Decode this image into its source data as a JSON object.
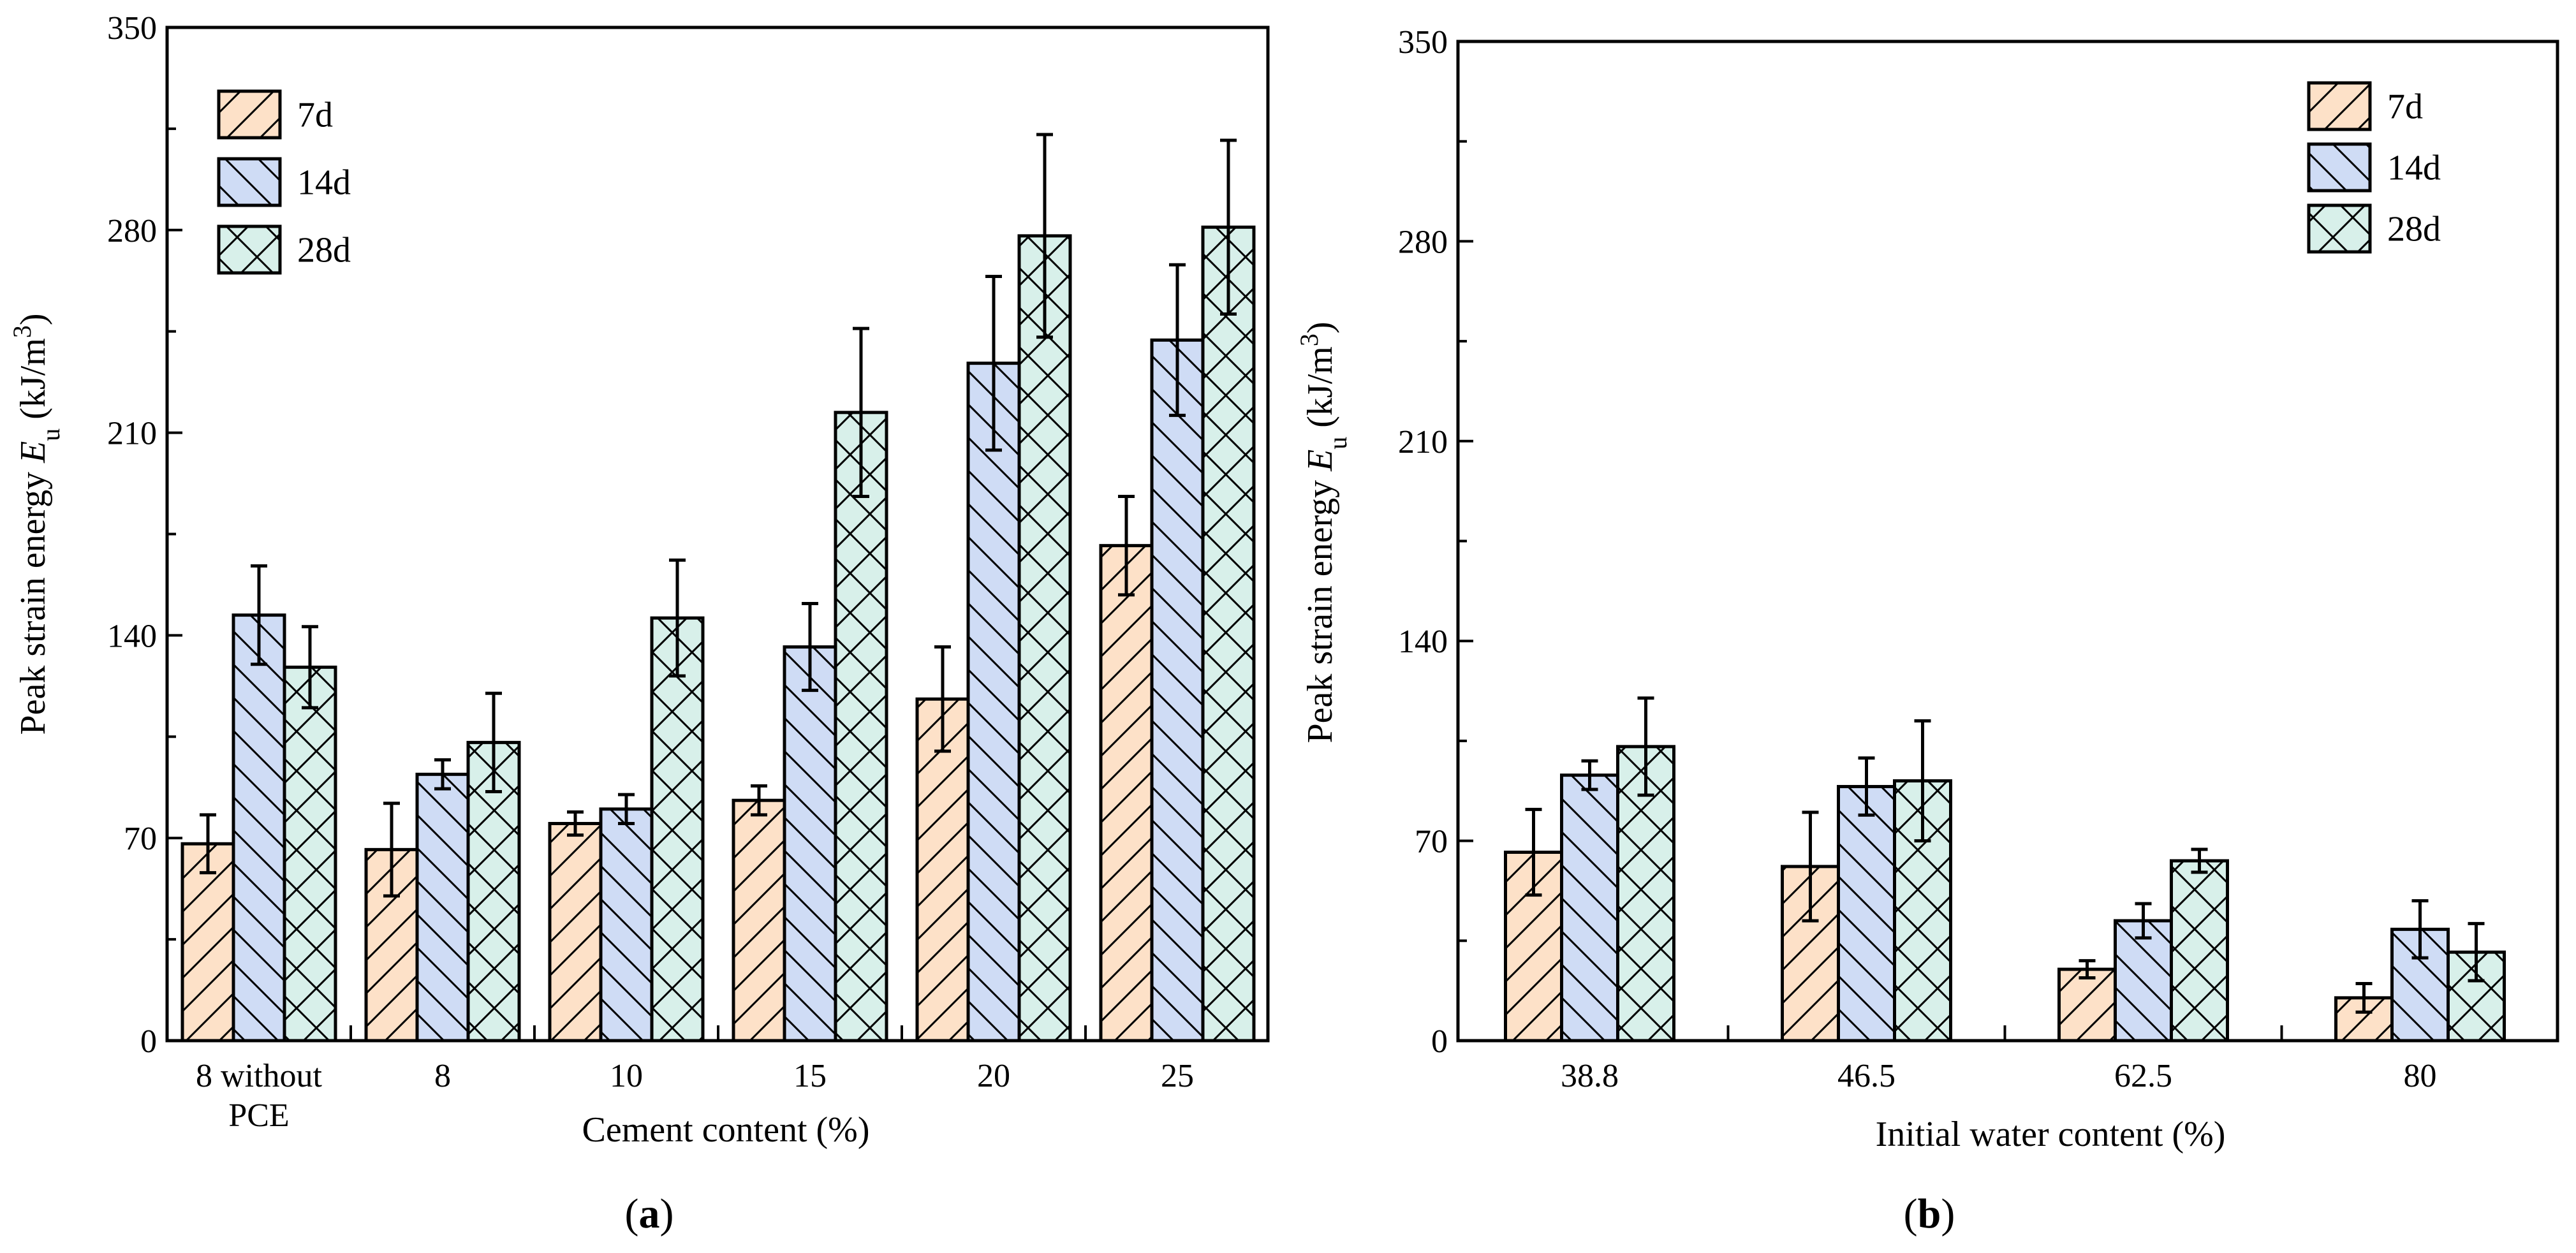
{
  "chart_data": [
    {
      "panel_label": "a",
      "type": "bar",
      "ylabel": {
        "main": "Peak strain energy ",
        "symbol": "E",
        "subscript": "u",
        "unit_open": " (kJ/m",
        "superscript": "3",
        "unit_close": ")"
      },
      "xlabel": "Cement content (%)",
      "ylim": [
        0,
        350
      ],
      "yticks": [
        "0",
        "70",
        "140",
        "210",
        "280",
        "350"
      ],
      "categories": [
        [
          "8 without",
          "PCE"
        ],
        [
          "8"
        ],
        [
          "10"
        ],
        [
          "15"
        ],
        [
          "20"
        ],
        [
          "25"
        ]
      ],
      "series": [
        {
          "name": "7d",
          "fill": "#fde1c8",
          "pattern": "fwd",
          "values": [
            68,
            66,
            75,
            83,
            118,
            171
          ],
          "errors": [
            10,
            16,
            4,
            5,
            18,
            17
          ]
        },
        {
          "name": "14d",
          "fill": "#cfdcf5",
          "pattern": "back",
          "values": [
            147,
            92,
            80,
            136,
            234,
            242
          ],
          "errors": [
            17,
            5,
            5,
            15,
            30,
            26
          ]
        },
        {
          "name": "28d",
          "fill": "#d8f0ea",
          "pattern": "cross",
          "values": [
            129,
            103,
            146,
            217,
            278,
            281
          ],
          "errors": [
            14,
            17,
            20,
            29,
            35,
            30
          ]
        }
      ]
    },
    {
      "panel_label": "b",
      "type": "bar",
      "ylabel": {
        "main": "Peak strain energy ",
        "symbol": "E",
        "subscript": "u",
        "unit_open": " (kJ/m",
        "superscript": "3",
        "unit_close": ")"
      },
      "xlabel": "Initial water content (%)",
      "ylim": [
        0,
        350
      ],
      "yticks": [
        "0",
        "70",
        "140",
        "210",
        "280",
        "350"
      ],
      "categories": [
        [
          "38.8"
        ],
        [
          "46.5"
        ],
        [
          "62.5"
        ],
        [
          "80"
        ]
      ],
      "series": [
        {
          "name": "7d",
          "fill": "#fde1c8",
          "pattern": "fwd",
          "values": [
            66,
            61,
            25,
            15
          ],
          "errors": [
            15,
            19,
            3,
            5
          ]
        },
        {
          "name": "14d",
          "fill": "#cfdcf5",
          "pattern": "back",
          "values": [
            93,
            89,
            42,
            39
          ],
          "errors": [
            5,
            10,
            6,
            10
          ]
        },
        {
          "name": "28d",
          "fill": "#d8f0ea",
          "pattern": "cross",
          "values": [
            103,
            91,
            63,
            31
          ],
          "errors": [
            17,
            21,
            4,
            10
          ]
        }
      ]
    }
  ]
}
